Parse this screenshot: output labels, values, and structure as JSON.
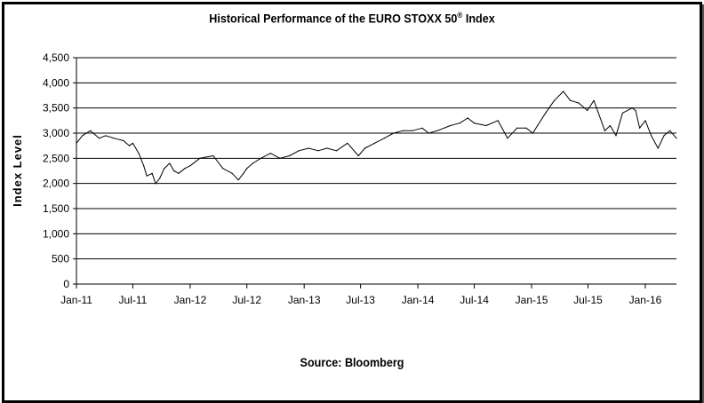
{
  "chart_data": {
    "type": "line",
    "title_main": "Historical Performance of the EURO STOXX 50",
    "title_sup": "®",
    "title_suffix": " Index",
    "ylabel": "Index Level",
    "source": "Source: Bloomberg",
    "ylim": [
      0,
      4500
    ],
    "yticks": [
      0,
      500,
      1000,
      1500,
      2000,
      2500,
      3000,
      3500,
      4000,
      4500
    ],
    "ytick_labels": [
      "0",
      "500",
      "1,000",
      "1,500",
      "2,000",
      "2,500",
      "3,000",
      "3,500",
      "4,000",
      "4,500"
    ],
    "xlim": [
      "2011-01-01",
      "2016-04-10"
    ],
    "xticks": [
      "2011-01-01",
      "2011-07-01",
      "2012-01-01",
      "2012-07-01",
      "2013-01-01",
      "2013-07-01",
      "2014-01-01",
      "2014-07-01",
      "2015-01-01",
      "2015-07-01",
      "2016-01-01"
    ],
    "xtick_labels": [
      "Jan-11",
      "Jul-11",
      "Jan-12",
      "Jul-12",
      "Jan-13",
      "Jul-13",
      "Jan-14",
      "Jul-14",
      "Jan-15",
      "Jul-15",
      "Jan-16"
    ],
    "grid": "horizontal",
    "series": [
      {
        "color": "#000000",
        "x": [
          "2011-01-01",
          "2011-01-20",
          "2011-02-15",
          "2011-03-15",
          "2011-04-05",
          "2011-05-01",
          "2011-06-01",
          "2011-06-20",
          "2011-07-01",
          "2011-07-20",
          "2011-08-05",
          "2011-08-15",
          "2011-09-01",
          "2011-09-12",
          "2011-09-25",
          "2011-10-10",
          "2011-10-27",
          "2011-11-10",
          "2011-11-25",
          "2011-12-15",
          "2012-01-01",
          "2012-02-01",
          "2012-03-15",
          "2012-04-15",
          "2012-05-15",
          "2012-06-04",
          "2012-06-20",
          "2012-07-01",
          "2012-07-20",
          "2012-08-15",
          "2012-09-15",
          "2012-10-15",
          "2012-11-15",
          "2012-12-15",
          "2013-01-15",
          "2013-02-15",
          "2013-03-15",
          "2013-04-15",
          "2013-05-20",
          "2013-06-24",
          "2013-07-15",
          "2013-08-15",
          "2013-09-15",
          "2013-10-15",
          "2013-11-15",
          "2013-12-15",
          "2014-01-15",
          "2014-02-05",
          "2014-03-05",
          "2014-04-15",
          "2014-05-15",
          "2014-06-10",
          "2014-07-01",
          "2014-08-08",
          "2014-09-15",
          "2014-10-16",
          "2014-11-15",
          "2014-12-15",
          "2015-01-05",
          "2015-01-20",
          "2015-02-15",
          "2015-03-15",
          "2015-04-13",
          "2015-05-05",
          "2015-06-01",
          "2015-06-29",
          "2015-07-20",
          "2015-08-24",
          "2015-09-10",
          "2015-09-29",
          "2015-10-20",
          "2015-11-20",
          "2015-12-01",
          "2015-12-14",
          "2016-01-01",
          "2016-01-20",
          "2016-02-11",
          "2016-03-01",
          "2016-03-20",
          "2016-04-10"
        ],
        "values": [
          2800,
          2950,
          3050,
          2900,
          2950,
          2900,
          2850,
          2750,
          2800,
          2600,
          2350,
          2150,
          2200,
          1995,
          2100,
          2300,
          2400,
          2250,
          2200,
          2300,
          2350,
          2500,
          2550,
          2300,
          2200,
          2070,
          2200,
          2300,
          2400,
          2500,
          2600,
          2500,
          2550,
          2650,
          2700,
          2650,
          2700,
          2650,
          2800,
          2550,
          2700,
          2800,
          2900,
          3000,
          3050,
          3050,
          3100,
          3000,
          3050,
          3150,
          3200,
          3300,
          3200,
          3150,
          3250,
          2900,
          3100,
          3100,
          3000,
          3150,
          3400,
          3650,
          3830,
          3650,
          3600,
          3450,
          3650,
          3050,
          3150,
          2950,
          3400,
          3500,
          3450,
          3100,
          3250,
          2950,
          2700,
          2950,
          3050,
          2900
        ]
      }
    ]
  }
}
